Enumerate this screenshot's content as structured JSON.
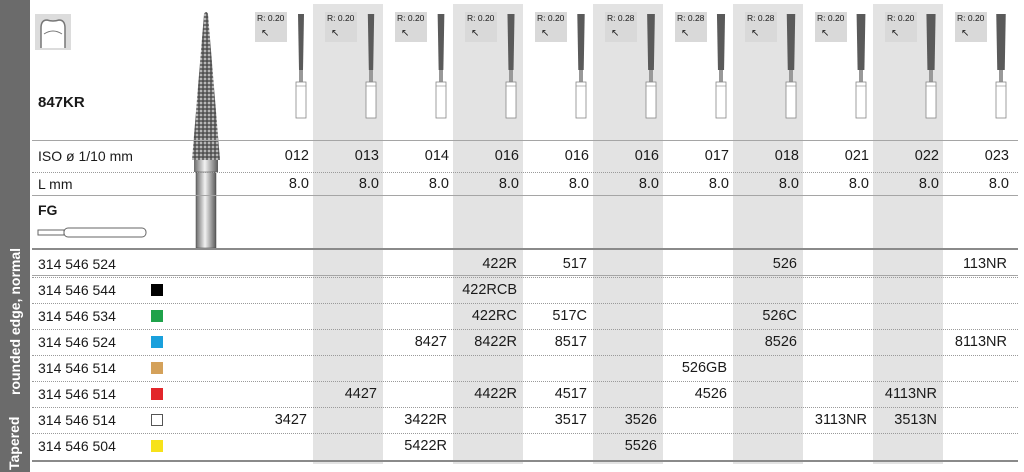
{
  "sidebar": {
    "label_bold": "Tapered",
    "label_rest": "rounded edge, normal"
  },
  "product": {
    "name": "847KR",
    "shank_type": "FG",
    "tooth_icon": "tooth-icon"
  },
  "radii": [
    "R: 0.20",
    "R: 0.20",
    "R: 0.20",
    "R: 0.20",
    "R: 0.20",
    "R: 0.28",
    "R: 0.28",
    "R: 0.28",
    "R: 0.20",
    "R: 0.20",
    "R: 0.20"
  ],
  "rows": {
    "iso_label": "ISO ø 1/10 mm",
    "iso": [
      "012",
      "013",
      "014",
      "016",
      "016",
      "016",
      "017",
      "018",
      "021",
      "022",
      "023"
    ],
    "len_label": "L mm",
    "len": [
      "8.0",
      "8.0",
      "8.0",
      "8.0",
      "8.0",
      "8.0",
      "8.0",
      "8.0",
      "8.0",
      "8.0",
      "8.0"
    ]
  },
  "orders": [
    {
      "code": "314 546 524",
      "color": "",
      "cells": [
        "",
        "",
        "",
        "422R",
        "517",
        "",
        "",
        "526",
        "",
        "",
        "113NR"
      ]
    },
    {
      "code": "314 546 544",
      "color": "#000000",
      "cells": [
        "",
        "",
        "",
        "422RCB",
        "",
        "",
        "",
        "",
        "",
        "",
        ""
      ]
    },
    {
      "code": "314 546 534",
      "color": "#1fa24a",
      "cells": [
        "",
        "",
        "",
        "422RC",
        "517C",
        "",
        "",
        "526C",
        "",
        "",
        ""
      ]
    },
    {
      "code": "314 546 524",
      "color": "#1aa0dc",
      "cells": [
        "",
        "",
        "8427",
        "8422R",
        "8517",
        "",
        "",
        "8526",
        "",
        "",
        "8113NR"
      ]
    },
    {
      "code": "314 546 514",
      "color": "#d4a15a",
      "cells": [
        "",
        "",
        "",
        "",
        "",
        "",
        "526GB",
        "",
        "",
        "",
        ""
      ]
    },
    {
      "code": "314 546 514",
      "color": "#e2262a",
      "cells": [
        "",
        "4427",
        "",
        "4422R",
        "4517",
        "",
        "4526",
        "",
        "",
        "4113NR",
        ""
      ]
    },
    {
      "code": "314 546 514",
      "color": "#ffffff",
      "cells": [
        "3427",
        "",
        "3422R",
        "",
        "3517",
        "3526",
        "",
        "",
        "3113NR",
        "3513N",
        ""
      ]
    },
    {
      "code": "314 546 504",
      "color": "#f7e21a",
      "cells": [
        "",
        "",
        "5422R",
        "",
        "",
        "5526",
        "",
        "",
        "",
        "",
        ""
      ]
    }
  ]
}
